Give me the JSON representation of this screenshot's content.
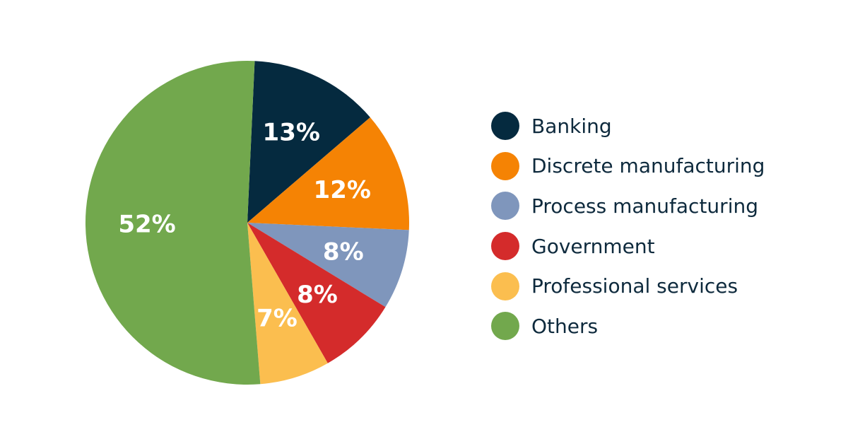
{
  "chart_data": {
    "type": "pie",
    "title": "",
    "legend_position": "right",
    "start_angle_deg": 2.6,
    "direction": "clockwise",
    "slices": [
      {
        "label": "Banking",
        "value": 13,
        "display": "13%",
        "color": "#052a3f"
      },
      {
        "label": "Discrete manufacturing",
        "value": 12,
        "display": "12%",
        "color": "#f58304"
      },
      {
        "label": "Process manufacturing",
        "value": 8,
        "display": "8%",
        "color": "#7f96bc"
      },
      {
        "label": "Government",
        "value": 8,
        "display": "8%",
        "color": "#d42b2b"
      },
      {
        "label": "Professional services",
        "value": 7,
        "display": "7%",
        "color": "#fbbe4f"
      },
      {
        "label": "Others",
        "value": 52,
        "display": "52%",
        "color": "#72a84d"
      }
    ]
  }
}
